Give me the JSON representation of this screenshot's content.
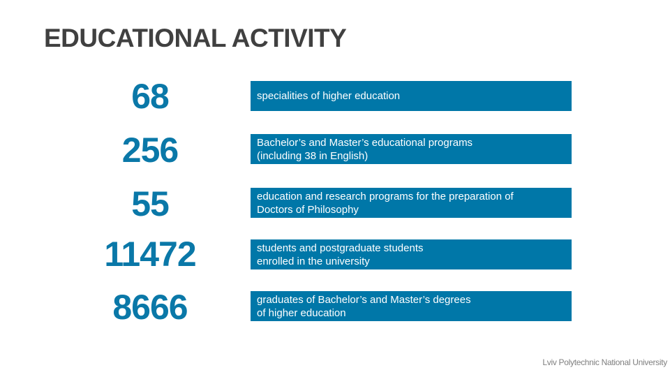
{
  "title": "EDUCATIONAL ACTIVITY",
  "stats": [
    {
      "value": "68",
      "label": "specialities of higher education"
    },
    {
      "value": "256",
      "label": "Bachelor’s and Master’s educational programs\n(including 38 in English)"
    },
    {
      "value": "55",
      "label": "education and research programs for the preparation of\nDoctors of Philosophy"
    },
    {
      "value": "11472",
      "label": "students and postgraduate students\nenrolled in the university"
    },
    {
      "value": "8666",
      "label": "graduates of Bachelor’s and Master’s degrees\nof higher education"
    }
  ],
  "footer": "Lviv Polytechnic National University",
  "colors": {
    "accent": "#0077a8",
    "title": "#404040"
  }
}
